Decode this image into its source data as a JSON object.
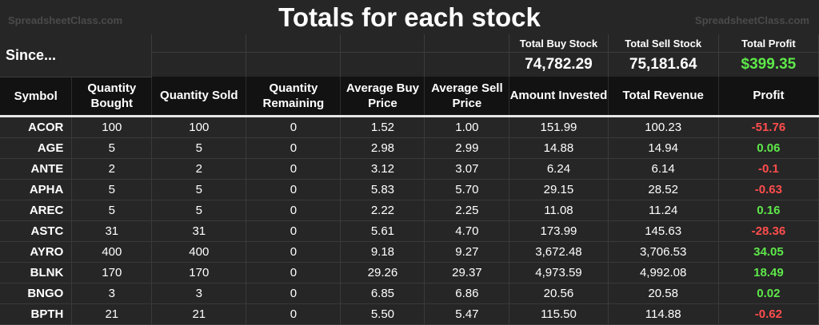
{
  "watermark": "SpreadsheetClass.com",
  "title": "Totals for each stock",
  "since_label": "Since...",
  "totals": [
    {
      "label": "Total Buy Stock",
      "value": "74,782.29"
    },
    {
      "label": "Total Sell Stock",
      "value": "75,181.64"
    },
    {
      "label": "Total Profit",
      "value": "$399.35"
    }
  ],
  "headers": [
    "Symbol",
    "Quantity Bought",
    "Quantity Sold",
    "Quantity Remaining",
    "Average Buy Price",
    "Average Sell Price",
    "Amount Invested",
    "Total Revenue",
    "Profit"
  ],
  "rows": [
    {
      "symbol": "ACOR",
      "bought": "100",
      "sold": "100",
      "remaining": "0",
      "avg_buy": "1.52",
      "avg_sell": "1.00",
      "invested": "151.99",
      "revenue": "100.23",
      "profit": "-51.76",
      "sign": "neg"
    },
    {
      "symbol": "AGE",
      "bought": "5",
      "sold": "5",
      "remaining": "0",
      "avg_buy": "2.98",
      "avg_sell": "2.99",
      "invested": "14.88",
      "revenue": "14.94",
      "profit": "0.06",
      "sign": "pos"
    },
    {
      "symbol": "ANTE",
      "bought": "2",
      "sold": "2",
      "remaining": "0",
      "avg_buy": "3.12",
      "avg_sell": "3.07",
      "invested": "6.24",
      "revenue": "6.14",
      "profit": "-0.1",
      "sign": "neg"
    },
    {
      "symbol": "APHA",
      "bought": "5",
      "sold": "5",
      "remaining": "0",
      "avg_buy": "5.83",
      "avg_sell": "5.70",
      "invested": "29.15",
      "revenue": "28.52",
      "profit": "-0.63",
      "sign": "neg"
    },
    {
      "symbol": "AREC",
      "bought": "5",
      "sold": "5",
      "remaining": "0",
      "avg_buy": "2.22",
      "avg_sell": "2.25",
      "invested": "11.08",
      "revenue": "11.24",
      "profit": "0.16",
      "sign": "pos"
    },
    {
      "symbol": "ASTC",
      "bought": "31",
      "sold": "31",
      "remaining": "0",
      "avg_buy": "5.61",
      "avg_sell": "4.70",
      "invested": "173.99",
      "revenue": "145.63",
      "profit": "-28.36",
      "sign": "neg"
    },
    {
      "symbol": "AYRO",
      "bought": "400",
      "sold": "400",
      "remaining": "0",
      "avg_buy": "9.18",
      "avg_sell": "9.27",
      "invested": "3,672.48",
      "revenue": "3,706.53",
      "profit": "34.05",
      "sign": "pos"
    },
    {
      "symbol": "BLNK",
      "bought": "170",
      "sold": "170",
      "remaining": "0",
      "avg_buy": "29.26",
      "avg_sell": "29.37",
      "invested": "4,973.59",
      "revenue": "4,992.08",
      "profit": "18.49",
      "sign": "pos"
    },
    {
      "symbol": "BNGO",
      "bought": "3",
      "sold": "3",
      "remaining": "0",
      "avg_buy": "6.85",
      "avg_sell": "6.86",
      "invested": "20.56",
      "revenue": "20.58",
      "profit": "0.02",
      "sign": "pos"
    },
    {
      "symbol": "BPTH",
      "bought": "21",
      "sold": "21",
      "remaining": "0",
      "avg_buy": "5.50",
      "avg_sell": "5.47",
      "invested": "115.50",
      "revenue": "114.88",
      "profit": "-0.62",
      "sign": "neg"
    }
  ],
  "colors": {
    "positive": "#5ee84a",
    "negative": "#ff4d4d",
    "header_bg": "#121212",
    "body_bg": "#262626"
  }
}
